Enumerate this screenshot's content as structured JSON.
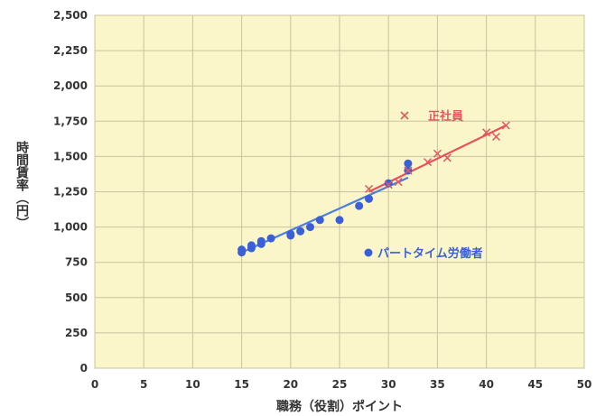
{
  "chart_data": {
    "type": "scatter",
    "title": "",
    "xlabel": "職務（役割）ポイント",
    "ylabel": "時間賃率（円）",
    "xlim": [
      0,
      50
    ],
    "ylim": [
      0,
      2500
    ],
    "xticks": [
      0,
      5,
      10,
      15,
      20,
      25,
      30,
      35,
      40,
      45,
      50
    ],
    "yticks": [
      0,
      250,
      500,
      750,
      1000,
      1250,
      1500,
      1750,
      2000,
      2250,
      2500
    ],
    "xtick_labels": [
      "0",
      "5",
      "10",
      "15",
      "20",
      "25",
      "30",
      "35",
      "40",
      "45",
      "50"
    ],
    "ytick_labels": [
      "0",
      "250",
      "500",
      "750",
      "1,000",
      "1,250",
      "1,500",
      "1,750",
      "2,000",
      "2,250",
      "2,500"
    ],
    "grid": true,
    "background": "#fbf6c9",
    "series": [
      {
        "name": "パートタイム労働者",
        "marker": "circle",
        "color": "#3a5fd9",
        "x": [
          15,
          15,
          16,
          16,
          17,
          17,
          18,
          20,
          20,
          21,
          22,
          23,
          25,
          27,
          28,
          30,
          32,
          32
        ],
        "y": [
          820,
          840,
          850,
          870,
          880,
          900,
          920,
          940,
          950,
          970,
          1000,
          1050,
          1050,
          1150,
          1200,
          1310,
          1400,
          1450
        ],
        "trend": {
          "x": [
            15,
            32
          ],
          "y": [
            820,
            1350
          ],
          "color": "#4a7ee0"
        }
      },
      {
        "name": "正社員",
        "marker": "x",
        "color": "#e2575f",
        "x": [
          28,
          30,
          31,
          32,
          34,
          35,
          36,
          40,
          41,
          42
        ],
        "y": [
          1270,
          1300,
          1320,
          1400,
          1460,
          1520,
          1490,
          1670,
          1640,
          1720
        ],
        "trend": {
          "x": [
            28,
            42
          ],
          "y": [
            1250,
            1720
          ],
          "color": "#e8505a"
        }
      }
    ],
    "legend": [
      {
        "label": "正社員",
        "marker": "x",
        "color": "#e2575f",
        "placement": "upper-right-inside"
      },
      {
        "label": "パートタイム労働者",
        "marker": "circle",
        "color": "#3a5fd9",
        "placement": "middle-right-inside"
      }
    ]
  }
}
